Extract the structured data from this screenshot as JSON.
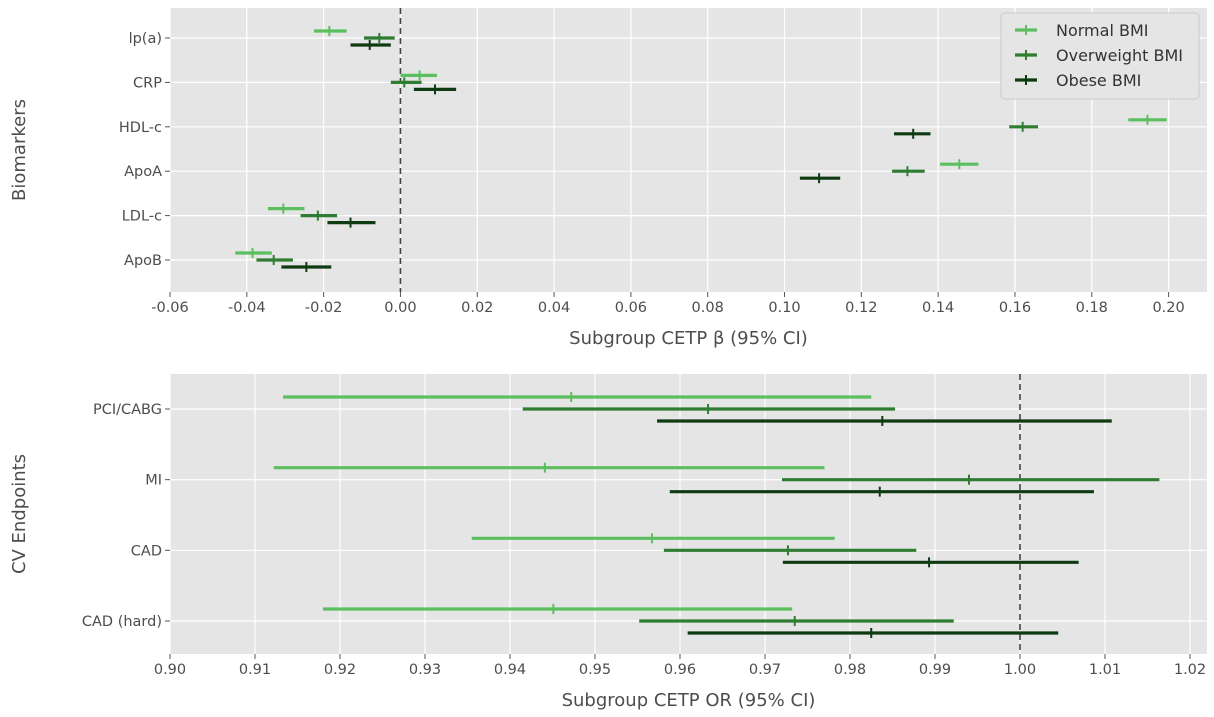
{
  "chart_data": [
    {
      "type": "forest",
      "title": "",
      "xlabel": "Subgroup CETP β (95% CI)",
      "ylabel": "Biomarkers",
      "xlim": [
        -0.06,
        0.21
      ],
      "xticks": [
        -0.06,
        -0.04,
        -0.02,
        0.0,
        0.02,
        0.04,
        0.06,
        0.08,
        0.1,
        0.12,
        0.14,
        0.16,
        0.18,
        0.2
      ],
      "xtick_labels": [
        "-0.06",
        "-0.04",
        "-0.02",
        "0.00",
        "0.02",
        "0.04",
        "0.06",
        "0.08",
        "0.10",
        "0.12",
        "0.14",
        "0.16",
        "0.18",
        "0.20"
      ],
      "reference_line": 0.0,
      "grid": true,
      "legend_position": "top-right",
      "categories": [
        "lp(a)",
        "CRP",
        "HDL-c",
        "ApoA",
        "LDL-c",
        "ApoB"
      ],
      "series": [
        {
          "name": "Normal BMI",
          "color": "#5cbf5f",
          "points": [
            {
              "est": -0.0185,
              "lo": -0.0225,
              "hi": -0.014
            },
            {
              "est": 0.005,
              "lo": 0.0,
              "hi": 0.0095
            },
            {
              "est": 0.1945,
              "lo": 0.1895,
              "hi": 0.1995
            },
            {
              "est": 0.1455,
              "lo": 0.1405,
              "hi": 0.1505
            },
            {
              "est": -0.0305,
              "lo": -0.0345,
              "hi": -0.025
            },
            {
              "est": -0.0385,
              "lo": -0.043,
              "hi": -0.0335
            }
          ]
        },
        {
          "name": "Overweight BMI",
          "color": "#2e7d32",
          "points": [
            {
              "est": -0.0055,
              "lo": -0.0095,
              "hi": -0.0015
            },
            {
              "est": 0.001,
              "lo": -0.0025,
              "hi": 0.0055
            },
            {
              "est": 0.162,
              "lo": 0.1585,
              "hi": 0.166
            },
            {
              "est": 0.132,
              "lo": 0.128,
              "hi": 0.1365
            },
            {
              "est": -0.0215,
              "lo": -0.026,
              "hi": -0.0165
            },
            {
              "est": -0.033,
              "lo": -0.0375,
              "hi": -0.028
            }
          ]
        },
        {
          "name": "Obese BMI",
          "color": "#0e3b12",
          "points": [
            {
              "est": -0.008,
              "lo": -0.013,
              "hi": -0.0025
            },
            {
              "est": 0.009,
              "lo": 0.0035,
              "hi": 0.0145
            },
            {
              "est": 0.1335,
              "lo": 0.1285,
              "hi": 0.138
            },
            {
              "est": 0.109,
              "lo": 0.104,
              "hi": 0.1145
            },
            {
              "est": -0.013,
              "lo": -0.019,
              "hi": -0.0065
            },
            {
              "est": -0.0245,
              "lo": -0.031,
              "hi": -0.018
            }
          ]
        }
      ]
    },
    {
      "type": "forest",
      "title": "",
      "xlabel": "Subgroup CETP OR (95% CI)",
      "ylabel": "CV Endpoints",
      "xlim": [
        0.9,
        1.022
      ],
      "xticks": [
        0.9,
        0.91,
        0.92,
        0.93,
        0.94,
        0.95,
        0.96,
        0.97,
        0.98,
        0.99,
        1.0,
        1.01,
        1.02
      ],
      "xtick_labels": [
        "0.90",
        "0.91",
        "0.92",
        "0.93",
        "0.94",
        "0.95",
        "0.96",
        "0.97",
        "0.98",
        "0.99",
        "1.00",
        "1.01",
        "1.02"
      ],
      "reference_line": 1.0,
      "grid": true,
      "categories": [
        "PCI/CABG",
        "MI",
        "CAD",
        "CAD (hard)"
      ],
      "series": [
        {
          "name": "Normal BMI",
          "color": "#5cbf5f",
          "points": [
            {
              "est": 0.9472,
              "lo": 0.9133,
              "hi": 0.9825
            },
            {
              "est": 0.9441,
              "lo": 0.9122,
              "hi": 0.977
            },
            {
              "est": 0.9567,
              "lo": 0.9355,
              "hi": 0.9782
            },
            {
              "est": 0.9451,
              "lo": 0.918,
              "hi": 0.9732
            }
          ]
        },
        {
          "name": "Overweight BMI",
          "color": "#2e7d32",
          "points": [
            {
              "est": 0.9633,
              "lo": 0.9415,
              "hi": 0.9853
            },
            {
              "est": 0.994,
              "lo": 0.972,
              "hi": 1.0164
            },
            {
              "est": 0.9727,
              "lo": 0.9581,
              "hi": 0.9878
            },
            {
              "est": 0.9735,
              "lo": 0.9552,
              "hi": 0.9922
            }
          ]
        },
        {
          "name": "Obese BMI",
          "color": "#0e3b12",
          "points": [
            {
              "est": 0.9838,
              "lo": 0.9573,
              "hi": 1.0108
            },
            {
              "est": 0.9835,
              "lo": 0.9588,
              "hi": 1.0087
            },
            {
              "est": 0.9893,
              "lo": 0.9721,
              "hi": 1.0069
            },
            {
              "est": 0.9825,
              "lo": 0.9609,
              "hi": 1.0045
            }
          ]
        }
      ]
    }
  ],
  "legend": [
    {
      "label": "Normal BMI",
      "color": "#5cbf5f"
    },
    {
      "label": "Overweight BMI",
      "color": "#2e7d32"
    },
    {
      "label": "Obese BMI",
      "color": "#0e3b12"
    }
  ]
}
